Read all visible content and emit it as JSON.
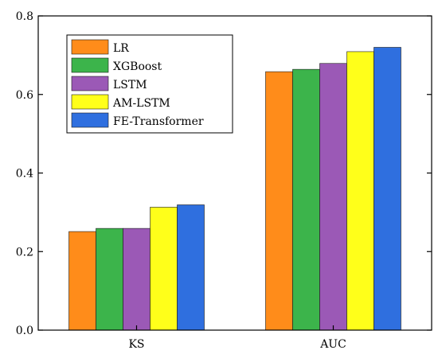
{
  "chart_data": {
    "type": "bar",
    "title": "",
    "xlabel": "",
    "ylabel": "",
    "categories": [
      "KS",
      "AUC"
    ],
    "series": [
      {
        "name": "LR",
        "color": "#ff8c1a",
        "values": [
          0.251,
          0.658
        ]
      },
      {
        "name": "XGBoost",
        "color": "#3cb44b",
        "values": [
          0.259,
          0.664
        ]
      },
      {
        "name": "LSTM",
        "color": "#9b59b6",
        "values": [
          0.259,
          0.679
        ]
      },
      {
        "name": "AM-LSTM",
        "color": "#ffff1a",
        "values": [
          0.313,
          0.709
        ]
      },
      {
        "name": "FE-Transformer",
        "color": "#2f6fdf",
        "values": [
          0.319,
          0.72
        ]
      }
    ],
    "ylim": [
      0.0,
      0.8
    ],
    "yticks": [
      "0.0",
      "0.2",
      "0.4",
      "0.6",
      "0.8"
    ],
    "grid": false,
    "legend_position": "top-left"
  }
}
